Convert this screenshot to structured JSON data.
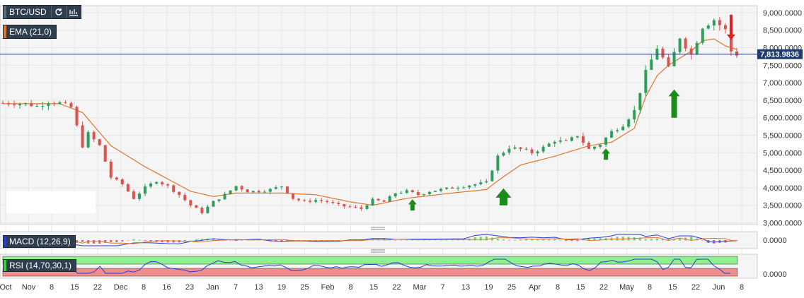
{
  "symbol": {
    "label": "BTC/USD"
  },
  "ema": {
    "label": "EMA (21,0)",
    "color": "#e0762a"
  },
  "macd": {
    "label": "MACD (12,26,9)",
    "value_label": "0.0000",
    "color": "#2a3bd8"
  },
  "rsi": {
    "label": "RSI (14,70,30,1)",
    "value_label": "0.0000",
    "color": "#2a3bd8",
    "overbought_color": "#8ef08e",
    "oversold_color": "#f08e8e"
  },
  "colors": {
    "up": "#2e9e5a",
    "down": "#d9534f",
    "arrow_up": "#1a8c1a",
    "arrow_down": "#e02020",
    "price_line": "#1f3b73",
    "grid": "#e6e6e6"
  },
  "chart_data": {
    "type": "candlestick",
    "y_axis_labels": [
      "3,000.0000",
      "3,500.0000",
      "4,000.0000",
      "4,500.0000",
      "5,000.0000",
      "5,500.0000",
      "6,000.0000",
      "6,500.0000",
      "7,000.0000",
      "7,500.0000",
      "8,000.0000",
      "8,500.0000",
      "9,000.0000"
    ],
    "ylim": [
      2950,
      9200
    ],
    "x_axis_labels": [
      "Oct",
      "Nov",
      "8",
      "15",
      "22",
      "Dec",
      "8",
      "16",
      "23",
      "Jan",
      "7",
      "13",
      "19",
      "25",
      "Feb",
      "8",
      "15",
      "22",
      "Mar",
      "7",
      "13",
      "19",
      "25",
      "Apr",
      "8",
      "15",
      "22",
      "May",
      "8",
      "15",
      "22",
      "Jun",
      "8"
    ],
    "current_price": 7813.9836,
    "current_price_label": "7,813.9836",
    "price_path": [
      [
        0,
        6420
      ],
      [
        4,
        6400
      ],
      [
        6,
        6330
      ],
      [
        8,
        6460
      ],
      [
        10,
        6420
      ],
      [
        12,
        6300
      ],
      [
        14,
        5200
      ],
      [
        15,
        5550
      ],
      [
        17,
        5200
      ],
      [
        19,
        4300
      ],
      [
        21,
        4100
      ],
      [
        23,
        3700
      ],
      [
        25,
        4000
      ],
      [
        27,
        4200
      ],
      [
        29,
        4050
      ],
      [
        31,
        3800
      ],
      [
        33,
        3500
      ],
      [
        35,
        3300
      ],
      [
        37,
        3600
      ],
      [
        39,
        3800
      ],
      [
        41,
        4050
      ],
      [
        43,
        3900
      ],
      [
        45,
        3900
      ],
      [
        47,
        3950
      ],
      [
        49,
        4050
      ],
      [
        51,
        3700
      ],
      [
        53,
        3600
      ],
      [
        55,
        3650
      ],
      [
        57,
        3600
      ],
      [
        59,
        3500
      ],
      [
        61,
        3450
      ],
      [
        63,
        3400
      ],
      [
        65,
        3650
      ],
      [
        67,
        3600
      ],
      [
        69,
        3850
      ],
      [
        71,
        3900
      ],
      [
        73,
        3800
      ],
      [
        75,
        3900
      ],
      [
        77,
        3950
      ],
      [
        79,
        4000
      ],
      [
        81,
        4050
      ],
      [
        83,
        4100
      ],
      [
        85,
        4150
      ],
      [
        87,
        4900
      ],
      [
        89,
        5150
      ],
      [
        91,
        5100
      ],
      [
        93,
        5000
      ],
      [
        95,
        5150
      ],
      [
        97,
        5350
      ],
      [
        99,
        5300
      ],
      [
        101,
        5500
      ],
      [
        103,
        5100
      ],
      [
        105,
        5250
      ],
      [
        107,
        5600
      ],
      [
        109,
        5800
      ],
      [
        111,
        6200
      ],
      [
        113,
        7300
      ],
      [
        115,
        8000
      ],
      [
        117,
        7400
      ],
      [
        119,
        8300
      ],
      [
        121,
        7800
      ],
      [
        123,
        8600
      ],
      [
        125,
        8800
      ],
      [
        127,
        8500
      ],
      [
        128,
        7900
      ],
      [
        129,
        7814
      ]
    ],
    "ema_path": [
      [
        0,
        6400
      ],
      [
        10,
        6400
      ],
      [
        14,
        6150
      ],
      [
        19,
        5200
      ],
      [
        25,
        4600
      ],
      [
        33,
        3900
      ],
      [
        37,
        3750
      ],
      [
        41,
        3850
      ],
      [
        49,
        3850
      ],
      [
        55,
        3800
      ],
      [
        61,
        3600
      ],
      [
        65,
        3500
      ],
      [
        71,
        3700
      ],
      [
        79,
        3850
      ],
      [
        85,
        3950
      ],
      [
        87,
        4200
      ],
      [
        91,
        4650
      ],
      [
        97,
        4900
      ],
      [
        103,
        5200
      ],
      [
        107,
        5300
      ],
      [
        111,
        5700
      ],
      [
        113,
        6600
      ],
      [
        115,
        7200
      ],
      [
        117,
        7500
      ],
      [
        119,
        7700
      ],
      [
        121,
        7900
      ],
      [
        123,
        8200
      ],
      [
        125,
        8250
      ],
      [
        127,
        8050
      ],
      [
        129,
        7950
      ]
    ],
    "annotations": [
      {
        "type": "arrow-up",
        "candle": 72,
        "price": 3350,
        "size": "small"
      },
      {
        "type": "arrow-up",
        "candle": 88,
        "price": 3500,
        "size": "large"
      },
      {
        "type": "arrow-up",
        "candle": 106,
        "price": 4800,
        "size": "small"
      },
      {
        "type": "arrow-up",
        "candle": 118,
        "price": 6000,
        "size": "medium"
      },
      {
        "type": "arrow-down",
        "candle": 128,
        "price": 8700,
        "size": "small"
      }
    ]
  }
}
